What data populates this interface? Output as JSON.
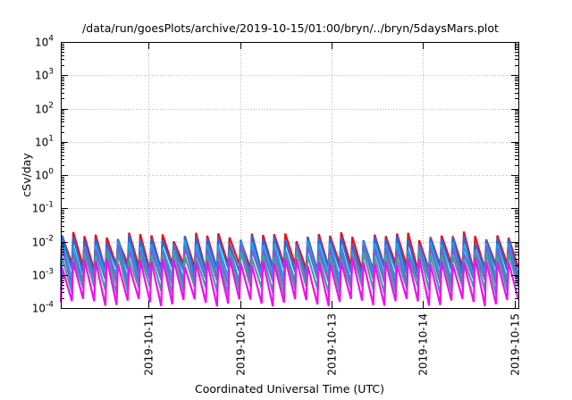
{
  "chart_data": {
    "type": "line",
    "title": "/data/run/goesPlots/archive/2019-10-15/01:00/bryn/../bryn/5daysMars.plot",
    "xlabel": "Coordinated Universal Time (UTC)",
    "ylabel": "cSv/day",
    "x_scale": "time",
    "y_scale": "log",
    "xlim": [
      "2019-10-10T01:00",
      "2019-10-15T01:00"
    ],
    "ylim": [
      0.0001,
      10000
    ],
    "grid": true,
    "legend": "none",
    "x_tick_labels": [
      "2019-10-11",
      "2019-10-12",
      "2019-10-13",
      "2019-10-14",
      "2019-10-15"
    ],
    "y_ticks": [
      {
        "base": "10",
        "exp": "-4",
        "value": 0.0001
      },
      {
        "base": "10",
        "exp": "-3",
        "value": 0.001
      },
      {
        "base": "10",
        "exp": "-2",
        "value": 0.01
      },
      {
        "base": "10",
        "exp": "-1",
        "value": 0.1
      },
      {
        "base": "10",
        "exp": "0",
        "value": 1
      },
      {
        "base": "10",
        "exp": "1",
        "value": 10
      },
      {
        "base": "10",
        "exp": "2",
        "value": 100
      },
      {
        "base": "10",
        "exp": "3",
        "value": 1000
      },
      {
        "base": "10",
        "exp": "4",
        "value": 10000
      }
    ],
    "pattern": "sawtooth",
    "cycles": 41,
    "series": [
      {
        "color": "#e8121b",
        "peak": 0.015,
        "trough": 0.0017
      },
      {
        "color": "#2e66d8",
        "peak": 0.012,
        "trough": 0.0013
      },
      {
        "color": "#1aa3e8",
        "peak": 0.008,
        "trough": 0.0008
      },
      {
        "color": "#7a5fd0",
        "peak": 0.006,
        "trough": 0.0006
      },
      {
        "color": "#3da0a0",
        "peak": 0.004,
        "trough": 0.00035
      },
      {
        "color": "#ee11ee",
        "peak": 0.0025,
        "trough": 0.00015
      }
    ]
  }
}
